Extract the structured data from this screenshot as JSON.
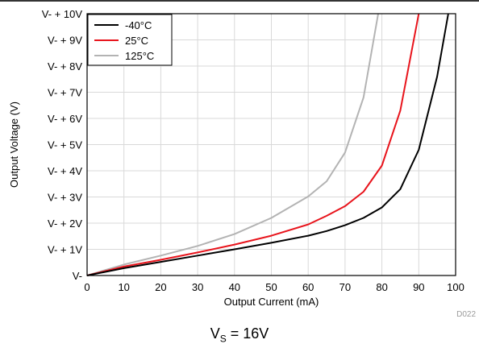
{
  "chart_data": {
    "type": "line",
    "xlabel": "Output Current (mA)",
    "ylabel": "Output Voltage (V)",
    "xlim": [
      0,
      100
    ],
    "ylim": [
      0,
      10
    ],
    "x_ticks": [
      "0",
      "10",
      "20",
      "30",
      "40",
      "50",
      "60",
      "70",
      "80",
      "90",
      "100"
    ],
    "y_ticks": [
      "V-",
      "V- + 1V",
      "V- + 2V",
      "V- + 3V",
      "V- + 4V",
      "V- + 5V",
      "V- + 6V",
      "V- + 7V",
      "V- + 8V",
      "V- + 9V",
      "V- + 10V"
    ],
    "grid": true,
    "legend_position": "top-left",
    "series": [
      {
        "name": "-40°C",
        "color": "#000000",
        "x": [
          0,
          10,
          20,
          30,
          40,
          50,
          60,
          65,
          70,
          75,
          80,
          85,
          90,
          95,
          98
        ],
        "y": [
          0,
          0.28,
          0.52,
          0.76,
          1.0,
          1.25,
          1.52,
          1.7,
          1.92,
          2.2,
          2.6,
          3.3,
          4.8,
          7.6,
          10.0
        ]
      },
      {
        "name": "25°C",
        "color": "#e8141c",
        "x": [
          0,
          10,
          20,
          30,
          40,
          50,
          60,
          65,
          70,
          75,
          80,
          85,
          90
        ],
        "y": [
          0,
          0.34,
          0.6,
          0.88,
          1.18,
          1.52,
          1.95,
          2.28,
          2.65,
          3.2,
          4.2,
          6.3,
          10.0
        ]
      },
      {
        "name": "125°C",
        "color": "#b3b3b3",
        "x": [
          0,
          10,
          20,
          30,
          40,
          50,
          60,
          65,
          70,
          75,
          79
        ],
        "y": [
          0,
          0.42,
          0.76,
          1.13,
          1.58,
          2.2,
          3.02,
          3.6,
          4.7,
          6.8,
          10.0
        ]
      }
    ]
  },
  "figure_id": "D022",
  "caption": {
    "main": "V",
    "sub": "S",
    "rest": " = 16V"
  }
}
